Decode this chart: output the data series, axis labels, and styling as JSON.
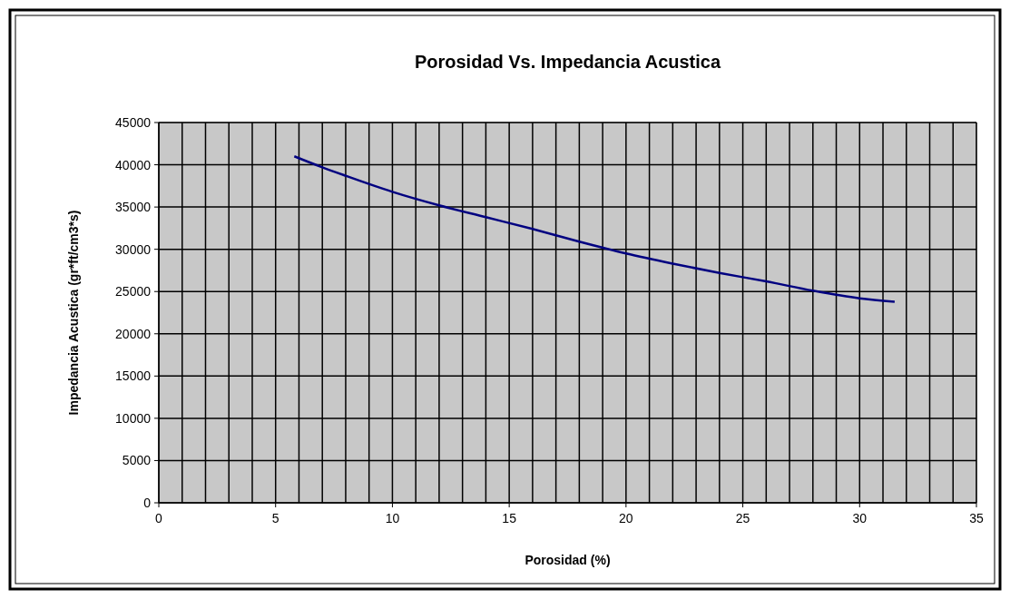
{
  "chart_data": {
    "type": "line",
    "title": "Porosidad Vs. Impedancia Acustica",
    "xlabel": "Porosidad (%)",
    "ylabel": "Impedancia Acustica (gr*ft/cm3*s)",
    "x": [
      5.8,
      7,
      8,
      10,
      12,
      14,
      16,
      18,
      20,
      22,
      24,
      26,
      28,
      30,
      31.5
    ],
    "series": [
      {
        "color": "#000080",
        "values": [
          41000,
          39700,
          38700,
          36800,
          35200,
          33800,
          32400,
          30900,
          29500,
          28300,
          27200,
          26200,
          25100,
          24200,
          23800
        ]
      }
    ],
    "xlim": [
      0,
      35
    ],
    "xticks": [
      0,
      {
        "value": 1,
        "label": null
      },
      {
        "value": 2,
        "label": null
      },
      {
        "value": 3,
        "label": null
      },
      {
        "value": 4,
        "label": null
      },
      5,
      {
        "value": 6,
        "label": null
      },
      {
        "value": 7,
        "label": null
      },
      {
        "value": 8,
        "label": null
      },
      {
        "value": 9,
        "label": null
      },
      10,
      {
        "value": 11,
        "label": null
      },
      {
        "value": 12,
        "label": null
      },
      {
        "value": 13,
        "label": null
      },
      {
        "value": 14,
        "label": null
      },
      15,
      {
        "value": 16,
        "label": null
      },
      {
        "value": 17,
        "label": null
      },
      {
        "value": 18,
        "label": null
      },
      {
        "value": 19,
        "label": null
      },
      20,
      {
        "value": 21,
        "label": null
      },
      {
        "value": 22,
        "label": null
      },
      {
        "value": 23,
        "label": null
      },
      {
        "value": 24,
        "label": null
      },
      25,
      {
        "value": 26,
        "label": null
      },
      {
        "value": 27,
        "label": null
      },
      {
        "value": 28,
        "label": null
      },
      {
        "value": 29,
        "label": null
      },
      30,
      {
        "value": 31,
        "label": null
      },
      {
        "value": 32,
        "label": null
      },
      {
        "value": 33,
        "label": null
      },
      {
        "value": 34,
        "label": null
      },
      35
    ],
    "ylim": [
      0,
      45000
    ],
    "yticks": [
      0,
      5000,
      10000,
      15000,
      20000,
      25000,
      30000,
      35000,
      40000,
      45000
    ],
    "grid": true,
    "marker": "none",
    "line_style": "solid"
  }
}
